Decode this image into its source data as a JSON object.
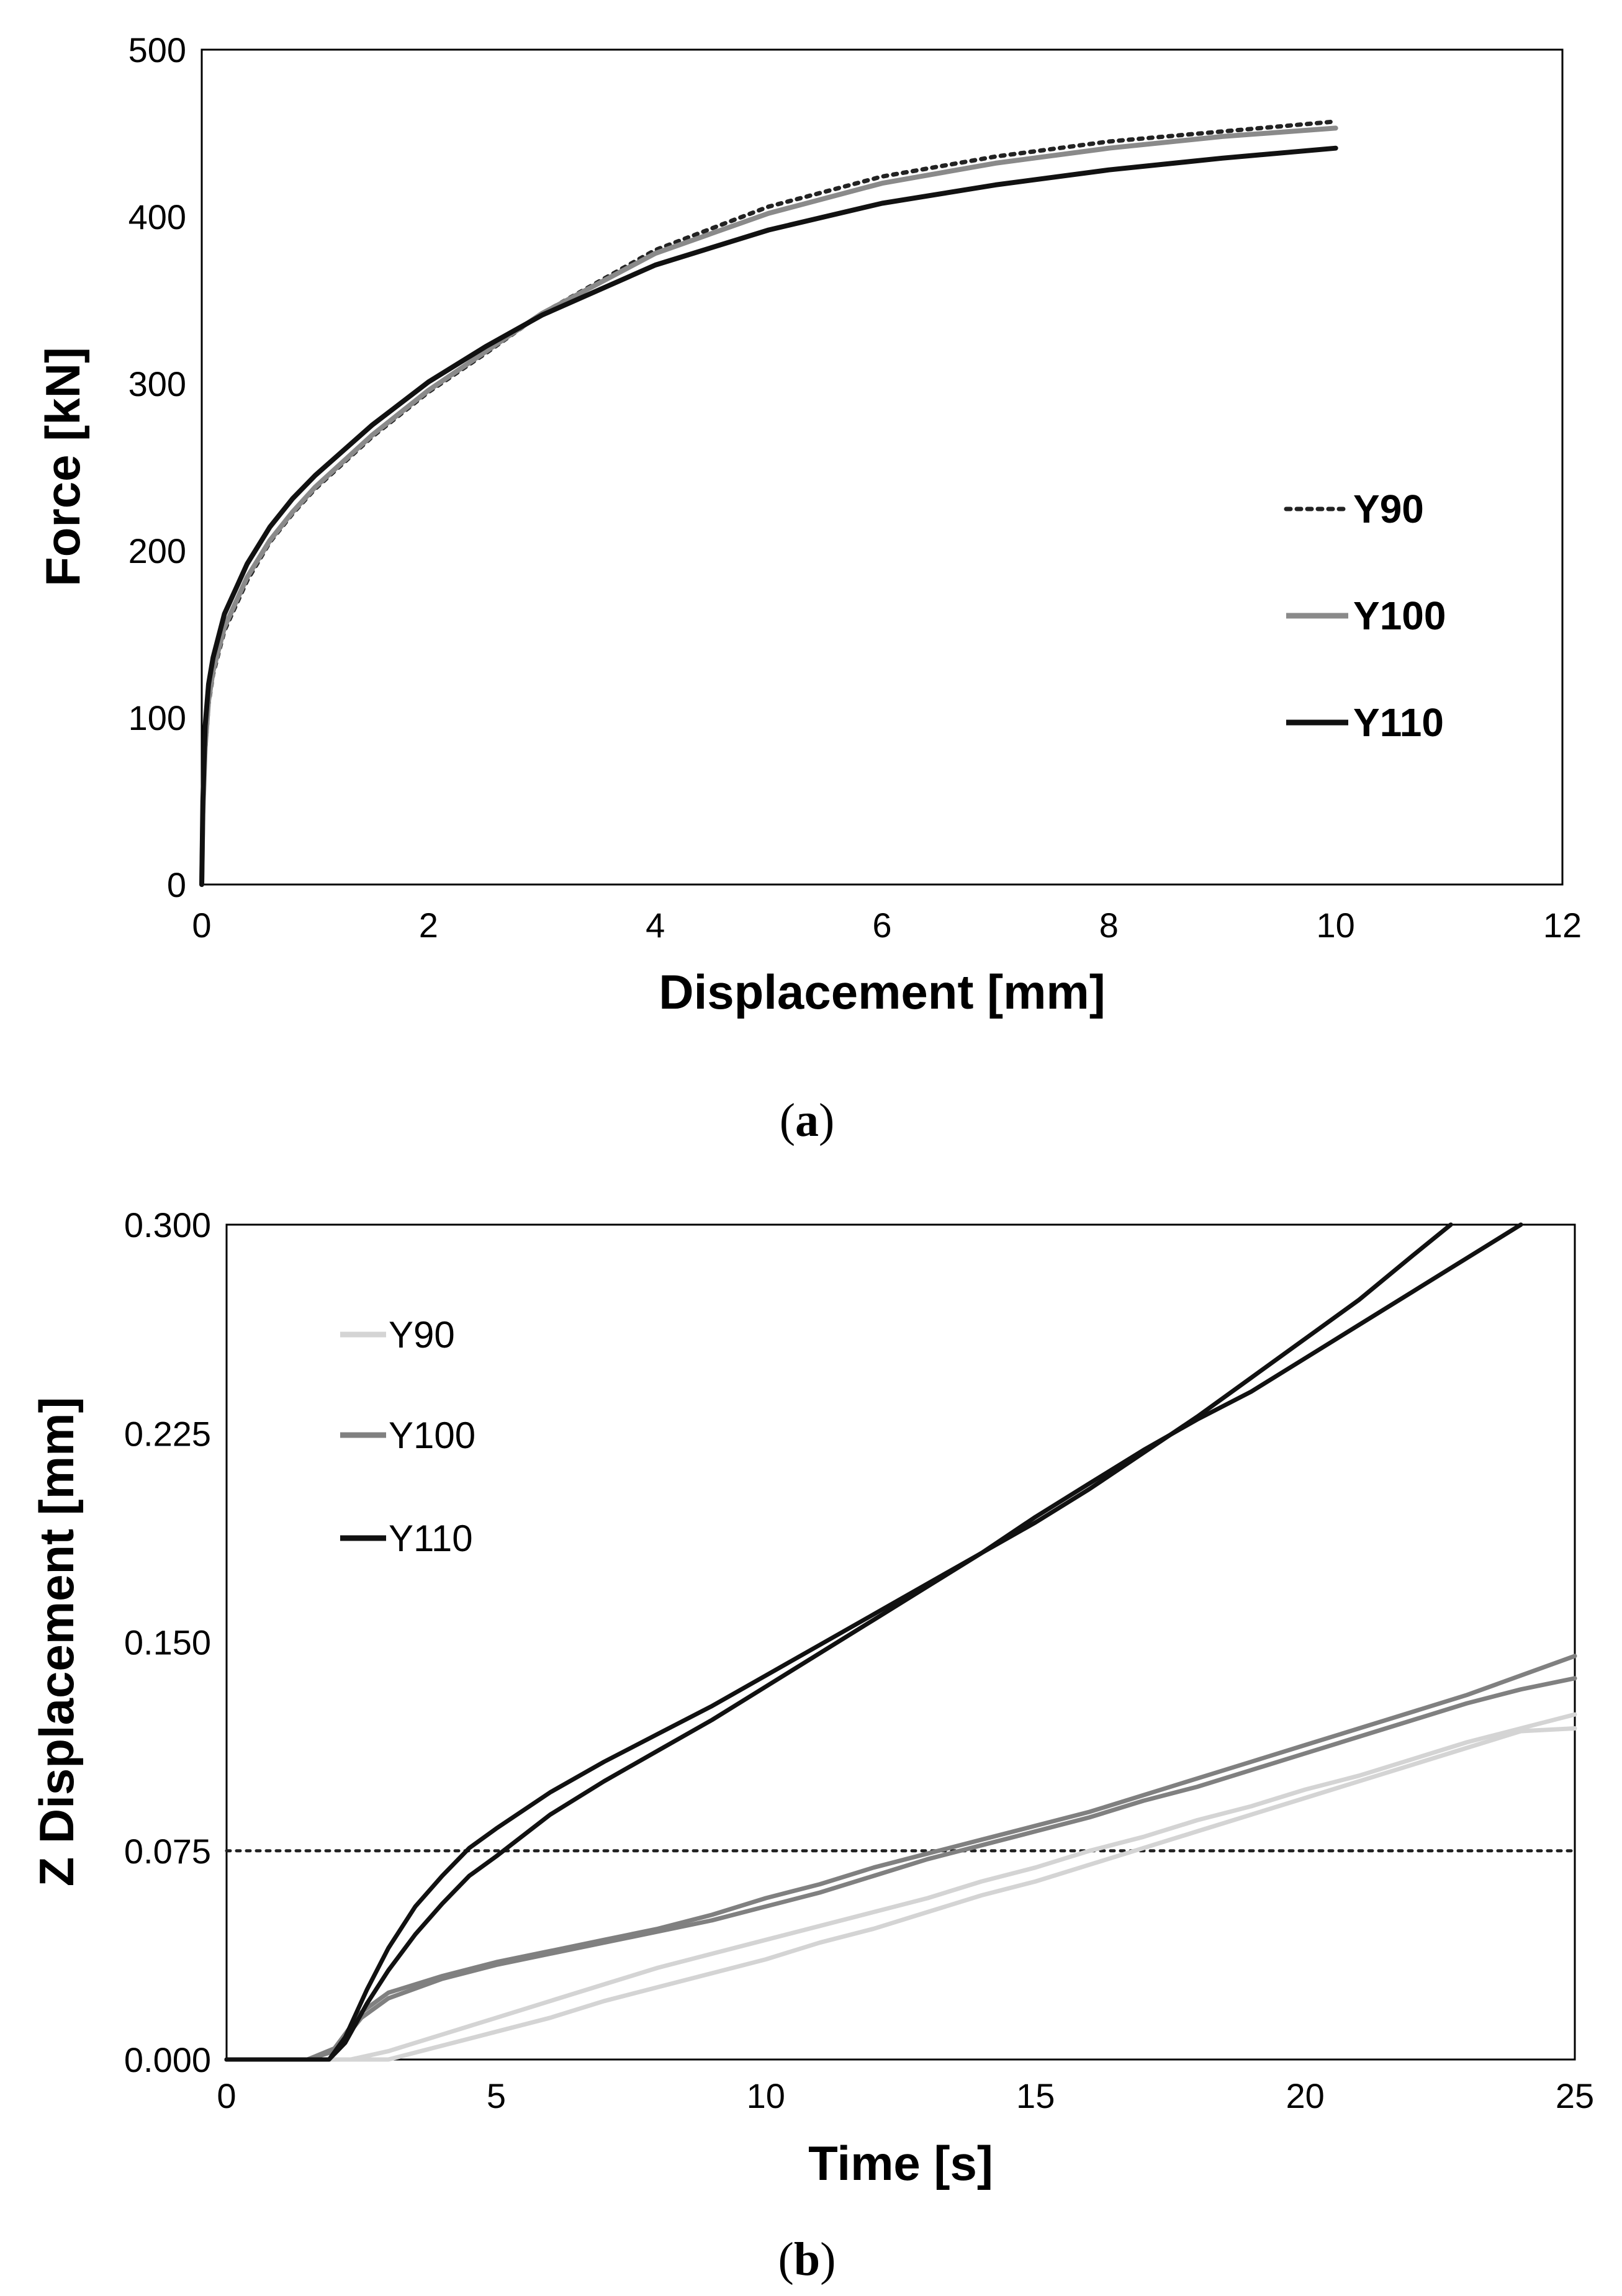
{
  "chart_data": [
    {
      "type": "line",
      "panel_label": "a",
      "caption_open": "(",
      "caption_close": ")",
      "title": "",
      "xlabel": "Displacement [mm]",
      "ylabel": "Force [kN]",
      "xlim": [
        0,
        12
      ],
      "ylim": [
        0,
        500
      ],
      "xticks": [
        0,
        2,
        4,
        6,
        8,
        10,
        12
      ],
      "yticks": [
        0,
        100,
        200,
        300,
        400,
        500
      ],
      "grid": false,
      "legend_position": "right",
      "series": [
        {
          "name": "Y90",
          "style": "dotted",
          "color": "#222222",
          "x": [
            0,
            0.01,
            0.03,
            0.06,
            0.1,
            0.2,
            0.4,
            0.6,
            0.8,
            1.0,
            1.5,
            2.0,
            2.5,
            3.0,
            4.0,
            5.0,
            6.0,
            7.0,
            8.0,
            9.0,
            10.0
          ],
          "y": [
            0,
            40,
            80,
            108,
            126,
            152,
            182,
            205,
            222,
            237,
            268,
            295,
            318,
            342,
            380,
            406,
            424,
            436,
            445,
            451,
            457
          ]
        },
        {
          "name": "Y100",
          "style": "solid",
          "color": "#8a8a8a",
          "x": [
            0,
            0.01,
            0.03,
            0.06,
            0.1,
            0.2,
            0.4,
            0.6,
            0.8,
            1.0,
            1.5,
            2.0,
            2.5,
            3.0,
            4.0,
            5.0,
            6.0,
            7.0,
            8.0,
            9.0,
            10.0
          ],
          "y": [
            0,
            42,
            82,
            110,
            128,
            154,
            184,
            206,
            223,
            238,
            269,
            296,
            319,
            342,
            378,
            402,
            420,
            432,
            441,
            448,
            453
          ]
        },
        {
          "name": "Y110",
          "style": "solid",
          "color": "#111111",
          "x": [
            0,
            0.01,
            0.03,
            0.06,
            0.1,
            0.2,
            0.4,
            0.6,
            0.8,
            1.0,
            1.5,
            2.0,
            2.5,
            3.0,
            4.0,
            5.0,
            6.0,
            7.0,
            8.0,
            9.0,
            10.0
          ],
          "y": [
            0,
            50,
            95,
            120,
            136,
            162,
            192,
            214,
            231,
            245,
            275,
            301,
            322,
            341,
            371,
            392,
            408,
            419,
            428,
            435,
            441
          ]
        }
      ]
    },
    {
      "type": "line",
      "panel_label": "b",
      "caption_open": "(",
      "caption_close": ")",
      "title": "",
      "xlabel": "Time [s]",
      "ylabel": "Z Displacement [mm]",
      "xlim": [
        0,
        25
      ],
      "ylim": [
        0,
        0.3
      ],
      "xticks": [
        0,
        5,
        10,
        15,
        20,
        25
      ],
      "yticks": [
        "0.000",
        "0.075",
        "0.150",
        "0.225",
        "0.300"
      ],
      "grid": false,
      "legend_position": "top-left",
      "reference_line": {
        "y": 0.075,
        "style": "dotted",
        "color": "#222222"
      },
      "series": [
        {
          "name": "Y90",
          "color": "#d4d4d4",
          "runs": [
            {
              "x": [
                0,
                1.5,
                2.3,
                3.0,
                4.0,
                5.0,
                6.0,
                7.0,
                8.0,
                9.0,
                10.0,
                11.0,
                12.0,
                13.0,
                14.0,
                15.0,
                16.0,
                17.0,
                18.0,
                19.0,
                20.0,
                21.0,
                22.0,
                23.0,
                24.0,
                25.0
              ],
              "y": [
                0.0,
                0.0,
                0.0,
                0.003,
                0.009,
                0.015,
                0.021,
                0.027,
                0.033,
                0.038,
                0.043,
                0.048,
                0.053,
                0.058,
                0.064,
                0.069,
                0.075,
                0.08,
                0.086,
                0.091,
                0.097,
                0.102,
                0.108,
                0.114,
                0.119,
                0.124
              ]
            },
            {
              "x": [
                0,
                1.5,
                2.5,
                3.0,
                4.0,
                5.0,
                6.0,
                7.0,
                8.0,
                9.0,
                10.0,
                11.0,
                12.0,
                13.0,
                14.0,
                15.0,
                16.0,
                17.0,
                18.0,
                19.0,
                20.0,
                21.0,
                22.0,
                23.0,
                24.0,
                25.0
              ],
              "y": [
                0.0,
                0.0,
                0.0,
                0.0,
                0.005,
                0.01,
                0.015,
                0.021,
                0.026,
                0.031,
                0.036,
                0.042,
                0.047,
                0.053,
                0.059,
                0.064,
                0.07,
                0.076,
                0.082,
                0.088,
                0.094,
                0.1,
                0.106,
                0.112,
                0.118,
                0.119
              ]
            }
          ]
        },
        {
          "name": "Y100",
          "color": "#808080",
          "runs": [
            {
              "x": [
                0,
                1.5,
                2.0,
                2.5,
                3.0,
                4.0,
                5.0,
                6.0,
                7.0,
                8.0,
                9.0,
                10.0,
                11.0,
                12.0,
                13.0,
                14.0,
                15.0,
                16.0,
                17.0,
                18.0,
                19.0,
                20.0,
                21.0,
                22.0,
                23.0,
                24.0,
                25.0
              ],
              "y": [
                0.0,
                0.0,
                0.003,
                0.015,
                0.022,
                0.029,
                0.034,
                0.038,
                0.042,
                0.046,
                0.05,
                0.055,
                0.06,
                0.066,
                0.072,
                0.077,
                0.082,
                0.087,
                0.093,
                0.098,
                0.104,
                0.11,
                0.116,
                0.122,
                0.128,
                0.133,
                0.137
              ]
            },
            {
              "x": [
                0,
                1.5,
                2.0,
                2.5,
                3.0,
                4.0,
                5.0,
                6.0,
                7.0,
                8.0,
                9.0,
                10.0,
                11.0,
                12.0,
                13.0,
                14.0,
                15.0,
                16.0,
                17.0,
                18.0,
                19.0,
                20.0,
                21.0,
                22.0,
                23.0,
                24.0,
                25.0
              ],
              "y": [
                0.0,
                0.0,
                0.004,
                0.017,
                0.024,
                0.03,
                0.035,
                0.039,
                0.043,
                0.047,
                0.052,
                0.058,
                0.063,
                0.069,
                0.074,
                0.079,
                0.084,
                0.089,
                0.095,
                0.101,
                0.107,
                0.113,
                0.119,
                0.125,
                0.131,
                0.138,
                0.145
              ]
            }
          ]
        },
        {
          "name": "Y110",
          "color": "#111111",
          "runs": [
            {
              "x": [
                0,
                1.9,
                2.2,
                2.6,
                3.0,
                3.5,
                4.0,
                4.5,
                5.0,
                6.0,
                7.0,
                8.0,
                9.0,
                10.0,
                11.0,
                12.0,
                13.0,
                14.0,
                15.0,
                16.0,
                17.0,
                18.0,
                19.0,
                20.0,
                21.0,
                22.0,
                22.7
              ],
              "y": [
                0.0,
                0.0,
                0.008,
                0.025,
                0.04,
                0.055,
                0.066,
                0.076,
                0.083,
                0.096,
                0.107,
                0.117,
                0.127,
                0.138,
                0.149,
                0.16,
                0.171,
                0.182,
                0.193,
                0.205,
                0.218,
                0.231,
                0.245,
                0.259,
                0.273,
                0.289,
                0.3
              ]
            },
            {
              "x": [
                0,
                1.9,
                2.2,
                2.6,
                3.0,
                3.5,
                4.0,
                4.5,
                5.0,
                6.0,
                7.0,
                8.0,
                9.0,
                10.0,
                11.0,
                12.0,
                13.0,
                14.0,
                15.0,
                16.0,
                17.0,
                18.0,
                19.0,
                20.0,
                21.0,
                22.0,
                23.0,
                24.0
              ],
              "y": [
                0.0,
                0.0,
                0.006,
                0.02,
                0.032,
                0.045,
                0.056,
                0.066,
                0.073,
                0.088,
                0.1,
                0.111,
                0.122,
                0.134,
                0.146,
                0.158,
                0.17,
                0.182,
                0.195,
                0.207,
                0.219,
                0.23,
                0.24,
                0.252,
                0.264,
                0.276,
                0.288,
                0.3
              ]
            }
          ]
        }
      ]
    }
  ]
}
